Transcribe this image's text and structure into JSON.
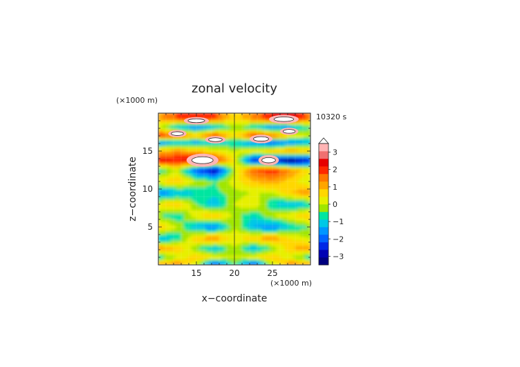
{
  "chart_data": {
    "type": "heatmap",
    "title": "zonal velocity",
    "time_label": "10320 s",
    "xlabel": "x−coordinate",
    "ylabel": "z−coordinate",
    "x_unit": "(×1000 m)",
    "y_unit": "(×1000 m)",
    "xlim": [
      10,
      30
    ],
    "ylim": [
      0,
      20
    ],
    "x_ticks": [
      "15",
      "20",
      "25"
    ],
    "y_ticks": [
      "5",
      "10",
      "15"
    ],
    "x_tick_values": [
      15,
      20,
      25
    ],
    "y_tick_values": [
      5,
      10,
      15
    ],
    "colorbar": {
      "min": -3.5,
      "max": 3.5,
      "step": 0.5,
      "tick_labels": [
        "3",
        "2",
        "1",
        "0",
        "−1",
        "−2",
        "−3"
      ],
      "tick_values": [
        3,
        2,
        1,
        0,
        -1,
        -2,
        -3
      ],
      "colors": [
        "#000080",
        "#0000b4",
        "#0028e6",
        "#0064ff",
        "#0096ff",
        "#00c8e6",
        "#00e6a0",
        "#a0e600",
        "#e6f000",
        "#ffd700",
        "#ffa500",
        "#ff7800",
        "#ff2800",
        "#e60000",
        "#f07070",
        "#ffb4b4"
      ],
      "over_color": "#ffffff"
    },
    "field_rows": [
      {
        "z": 19.3,
        "values": [
          1.8,
          2.5,
          3.0,
          2.5,
          1.2,
          2.0,
          3.0,
          3.4,
          2.2
        ]
      },
      {
        "z": 18.2,
        "values": [
          0.5,
          -0.8,
          -1.5,
          -1.0,
          0.3,
          -0.5,
          -1.5,
          -1.2,
          0.0
        ]
      },
      {
        "z": 17.0,
        "values": [
          3.0,
          2.5,
          1.5,
          3.0,
          1.0,
          3.0,
          2.5,
          1.2,
          0.5
        ]
      },
      {
        "z": 16.2,
        "values": [
          -1.5,
          -1.0,
          -1.2,
          -0.8,
          -0.5,
          -1.5,
          -2.0,
          -1.5,
          -1.0
        ]
      },
      {
        "z": 15.0,
        "values": [
          1.5,
          2.0,
          1.5,
          1.0,
          0.5,
          1.0,
          1.5,
          2.0,
          1.5
        ]
      },
      {
        "z": 13.8,
        "values": [
          3.2,
          3.0,
          3.5,
          3.0,
          1.0,
          -2.5,
          -3.0,
          -3.5,
          -2.5
        ]
      },
      {
        "z": 12.5,
        "values": [
          -0.5,
          0.5,
          -2.0,
          -3.0,
          0.5,
          2.5,
          3.0,
          2.0,
          1.0
        ]
      },
      {
        "z": 11.0,
        "values": [
          1.0,
          1.5,
          0.5,
          0.0,
          0.8,
          1.5,
          1.8,
          1.2,
          0.5
        ]
      },
      {
        "z": 9.5,
        "values": [
          -1.5,
          -1.0,
          -0.5,
          -0.2,
          0.3,
          0.5,
          0.5,
          1.5,
          2.0
        ]
      },
      {
        "z": 8.0,
        "values": [
          1.0,
          1.5,
          0.0,
          -1.0,
          0.5,
          1.0,
          -0.5,
          -1.0,
          -0.5
        ]
      },
      {
        "z": 6.5,
        "values": [
          0.0,
          -0.5,
          1.0,
          1.5,
          0.3,
          -0.5,
          0.5,
          1.0,
          1.5
        ]
      },
      {
        "z": 5.0,
        "values": [
          1.5,
          0.5,
          -1.0,
          -1.5,
          0.5,
          -1.0,
          -1.5,
          -0.5,
          0.0
        ]
      },
      {
        "z": 3.5,
        "values": [
          -1.0,
          -0.5,
          1.5,
          2.0,
          0.8,
          1.5,
          2.0,
          1.0,
          0.5
        ]
      },
      {
        "z": 2.2,
        "values": [
          2.0,
          1.5,
          0.0,
          -1.0,
          0.5,
          -1.0,
          0.0,
          1.5,
          2.0
        ]
      },
      {
        "z": 1.0,
        "values": [
          -0.5,
          0.5,
          1.5,
          1.0,
          0.5,
          1.0,
          1.5,
          0.5,
          -0.5
        ]
      },
      {
        "z": 0.2,
        "values": [
          1.5,
          2.0,
          0.5,
          -2.0,
          0.0,
          -2.0,
          0.5,
          2.0,
          1.5
        ]
      }
    ],
    "field_x": [
      10,
      12.5,
      15,
      17.5,
      20,
      22.5,
      25,
      27.5,
      30
    ],
    "extremes": [
      {
        "x": 15.8,
        "z": 13.8,
        "rx": 1.4,
        "rz": 0.45,
        "value": 4.0
      },
      {
        "x": 24.5,
        "z": 13.8,
        "rx": 0.9,
        "rz": 0.35,
        "value": 4.0
      },
      {
        "x": 15.0,
        "z": 19.0,
        "rx": 1.1,
        "rz": 0.25,
        "value": 4.0
      },
      {
        "x": 26.5,
        "z": 19.2,
        "rx": 1.3,
        "rz": 0.3,
        "value": 4.0
      },
      {
        "x": 12.5,
        "z": 17.3,
        "rx": 0.8,
        "rz": 0.25,
        "value": 4.0
      },
      {
        "x": 17.5,
        "z": 16.5,
        "rx": 0.9,
        "rz": 0.25,
        "value": 4.0
      },
      {
        "x": 23.5,
        "z": 16.6,
        "rx": 1.0,
        "rz": 0.3,
        "value": 4.0
      },
      {
        "x": 27.2,
        "z": 17.6,
        "rx": 0.8,
        "rz": 0.25,
        "value": 4.0
      }
    ]
  }
}
